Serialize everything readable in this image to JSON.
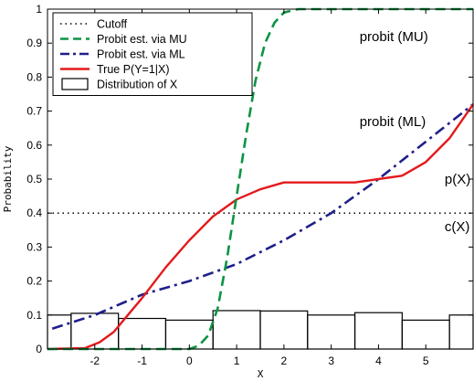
{
  "chart_data": {
    "type": "line",
    "xlabel": "X",
    "ylabel": "Probability",
    "xlim": [
      -3,
      6
    ],
    "ylim": [
      0,
      1
    ],
    "xticks": [
      -2,
      -1,
      0,
      1,
      2,
      3,
      4,
      5
    ],
    "yticks": [
      0,
      0.1,
      0.2,
      0.3,
      0.4,
      0.5,
      0.6,
      0.7,
      0.8,
      0.9,
      1
    ],
    "grid": false,
    "legend_position": "top-left",
    "series": [
      {
        "name": "Cutoff",
        "style": "dotted",
        "color": "#000000",
        "points": [
          [
            -3,
            0.4
          ],
          [
            6,
            0.4
          ]
        ]
      },
      {
        "name": "Probit est. via MU",
        "style": "dashed",
        "color": "#0b9444",
        "points": [
          [
            -3,
            0.0
          ],
          [
            0,
            0.0
          ],
          [
            0.2,
            0.01
          ],
          [
            0.4,
            0.04
          ],
          [
            0.6,
            0.12
          ],
          [
            0.8,
            0.27
          ],
          [
            1.0,
            0.45
          ],
          [
            1.2,
            0.63
          ],
          [
            1.4,
            0.79
          ],
          [
            1.6,
            0.9
          ],
          [
            1.8,
            0.96
          ],
          [
            2.0,
            0.99
          ],
          [
            2.3,
            1.0
          ],
          [
            6,
            1.0
          ]
        ]
      },
      {
        "name": "Probit est. via ML",
        "style": "dashdot",
        "color": "#1f1f8c",
        "points": [
          [
            -2.9,
            0.06
          ],
          [
            -2,
            0.1
          ],
          [
            -1,
            0.16
          ],
          [
            0,
            0.2
          ],
          [
            1,
            0.25
          ],
          [
            2,
            0.32
          ],
          [
            3,
            0.4
          ],
          [
            4,
            0.5
          ],
          [
            5,
            0.61
          ],
          [
            6,
            0.72
          ]
        ]
      },
      {
        "name": "True P(Y=1|X)",
        "style": "solid",
        "color": "#e31a1c",
        "points": [
          [
            -3,
            0.0
          ],
          [
            -2.2,
            0.003
          ],
          [
            -1.9,
            0.02
          ],
          [
            -1.6,
            0.05
          ],
          [
            -1.3,
            0.1
          ],
          [
            -1.0,
            0.15
          ],
          [
            -0.5,
            0.24
          ],
          [
            0.0,
            0.32
          ],
          [
            0.5,
            0.39
          ],
          [
            1.0,
            0.44
          ],
          [
            1.5,
            0.47
          ],
          [
            2.0,
            0.49
          ],
          [
            2.5,
            0.49
          ],
          [
            3.0,
            0.49
          ],
          [
            3.5,
            0.49
          ],
          [
            4.0,
            0.5
          ],
          [
            4.5,
            0.51
          ],
          [
            5.0,
            0.55
          ],
          [
            5.5,
            0.62
          ],
          [
            6.0,
            0.72
          ]
        ]
      },
      {
        "name": "Distribution of  X",
        "type": "bar",
        "color": "#000000",
        "bin_edges": [
          -3,
          -2.5,
          -1.5,
          -0.5,
          0.5,
          1.5,
          2.5,
          3.5,
          4.5,
          5.5,
          6
        ],
        "values": [
          0.1,
          0.105,
          0.09,
          0.085,
          0.113,
          0.112,
          0.1,
          0.107,
          0.085,
          0.1
        ]
      }
    ],
    "annotations": [
      {
        "text": "probit (MU)",
        "x": 3.6,
        "y": 0.92
      },
      {
        "text": "probit (ML)",
        "x": 3.6,
        "y": 0.67
      },
      {
        "text": "p(X)",
        "x": 5.4,
        "y": 0.5
      },
      {
        "text": "c(X)",
        "x": 5.4,
        "y": 0.36
      }
    ]
  }
}
